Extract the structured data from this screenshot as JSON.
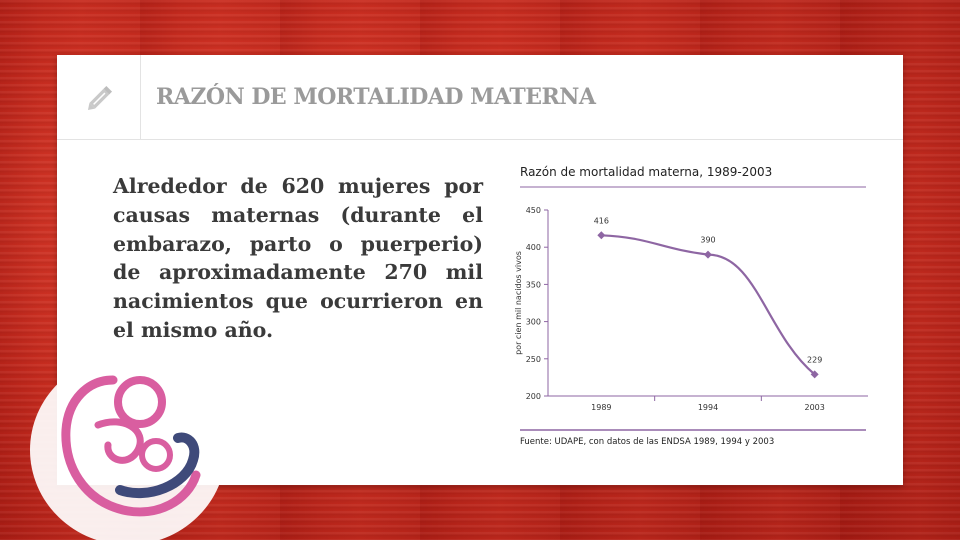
{
  "slide": {
    "title": "RAZÓN DE MORTALIDAD MATERNA",
    "body": "Alrededor de 620 mujeres por causas maternas (durante el embarazo, parto o puerperio) de aproximadamente 270 mil nacimientos que ocurrieron en el mismo año."
  },
  "icons": {
    "edit": "pencil-icon",
    "logo": "mother-and-baby-logo"
  },
  "colors": {
    "background": "#c52a1e",
    "series": "#8e66a3",
    "logo_pink": "#d95ea0",
    "logo_navy": "#3f4a7a"
  },
  "chart_data": {
    "type": "line",
    "title": "Razón de mortalidad materna, 1989-2003",
    "ylabel": "por cien mil nacidos vivos",
    "xlabel": "",
    "categories": [
      "1989",
      "1994",
      "2003"
    ],
    "series": [
      {
        "values": [
          416,
          390,
          229
        ]
      }
    ],
    "ylim": [
      200,
      450
    ],
    "yticks": [
      "450",
      "400",
      "350",
      "300",
      "250",
      "200"
    ],
    "data_labels": [
      "416",
      "390",
      "229"
    ],
    "source": "Fuente: UDAPE, con datos de las ENDSA 1989, 1994 y 2003",
    "grid": false
  }
}
